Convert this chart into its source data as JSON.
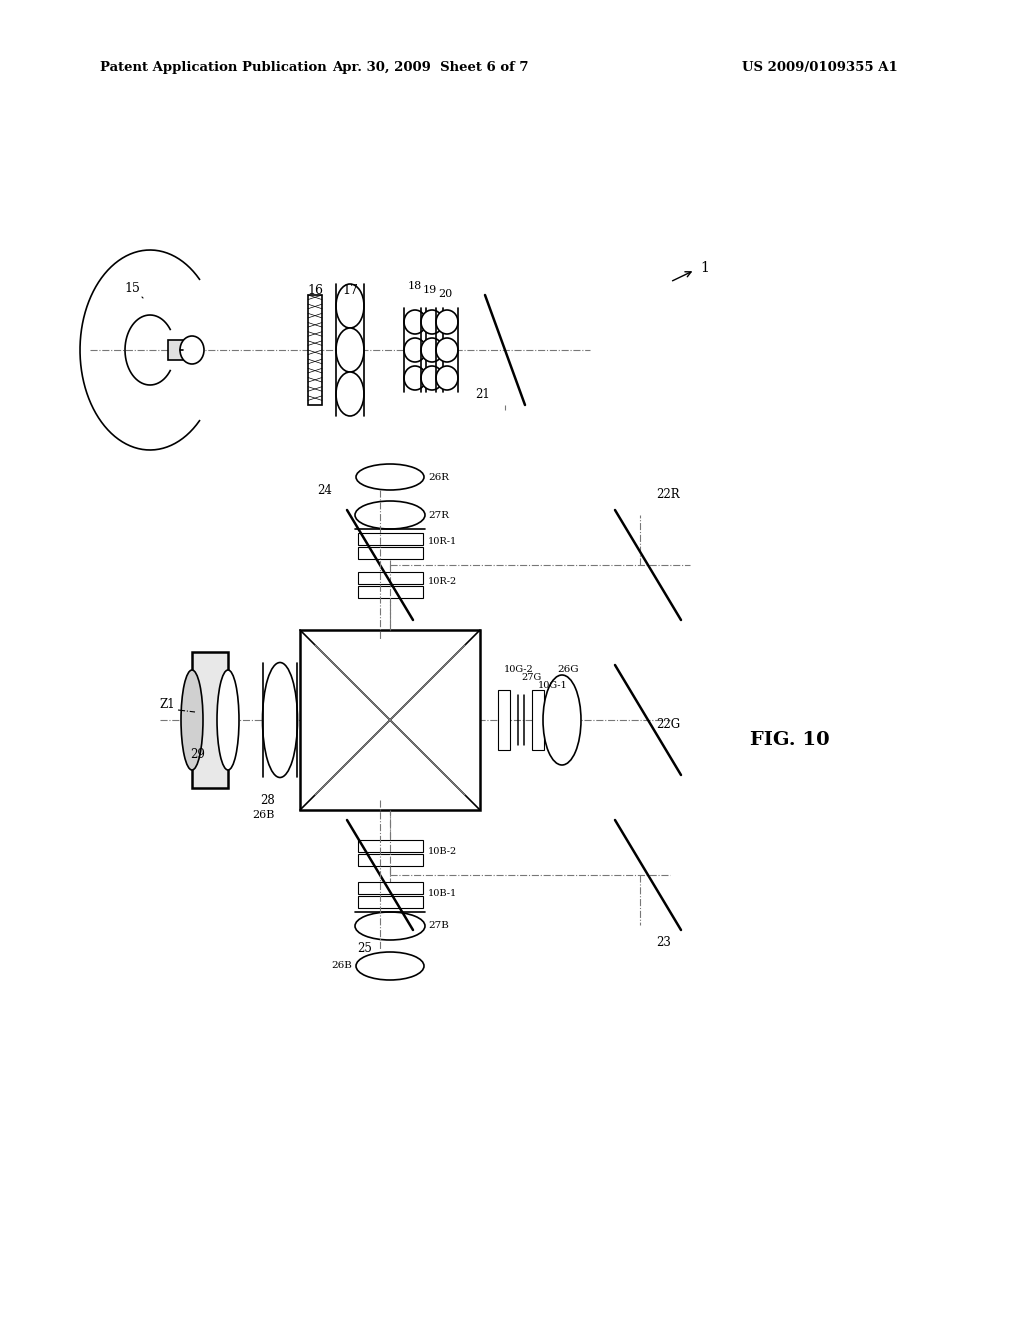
{
  "title_left": "Patent Application Publication",
  "title_center": "Apr. 30, 2009  Sheet 6 of 7",
  "title_right": "US 2009/0109355 A1",
  "fig_label": "FIG. 10",
  "bg_color": "#ffffff",
  "line_color": "#000000"
}
